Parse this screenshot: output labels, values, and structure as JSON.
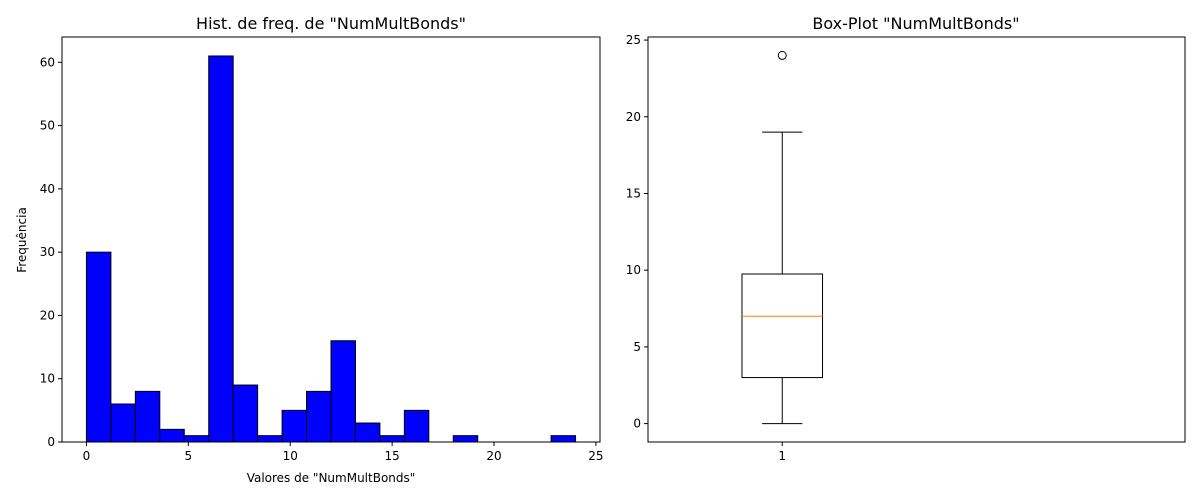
{
  "chart_data": [
    {
      "type": "bar",
      "subtype": "histogram",
      "title": "Hist. de freq. de \"NumMultBonds\"",
      "xlabel": "Valores de \"NumMultBonds\"",
      "ylabel": "Frequência",
      "bin_edges": [
        0,
        1.2,
        2.4,
        3.6,
        4.8,
        6.0,
        7.2,
        8.4,
        9.6,
        10.8,
        12.0,
        13.2,
        14.4,
        15.6,
        16.8,
        18.0,
        19.2,
        20.4,
        21.6,
        22.8,
        24.0
      ],
      "values": [
        30,
        6,
        8,
        2,
        1,
        61,
        9,
        1,
        5,
        8,
        16,
        3,
        1,
        5,
        0,
        1,
        0,
        0,
        0,
        1
      ],
      "xlim": [
        -1.2,
        25.2
      ],
      "ylim": [
        0,
        64
      ],
      "xticks": [
        0,
        5,
        10,
        15,
        20,
        25
      ],
      "yticks": [
        0,
        10,
        20,
        30,
        40,
        50,
        60
      ],
      "bar_color": "#0000ff",
      "edge_color": "#000000"
    },
    {
      "type": "box",
      "title": "Box-Plot \"NumMultBonds\"",
      "categories": [
        "1"
      ],
      "whisker_low": 0,
      "q1": 3,
      "median": 7,
      "q3": 9.75,
      "whisker_high": 19,
      "outliers": [
        24
      ],
      "ylim": [
        -1.2,
        25.2
      ],
      "yticks": [
        0,
        5,
        10,
        15,
        20,
        25
      ],
      "median_color": "#ff7f0e"
    }
  ]
}
